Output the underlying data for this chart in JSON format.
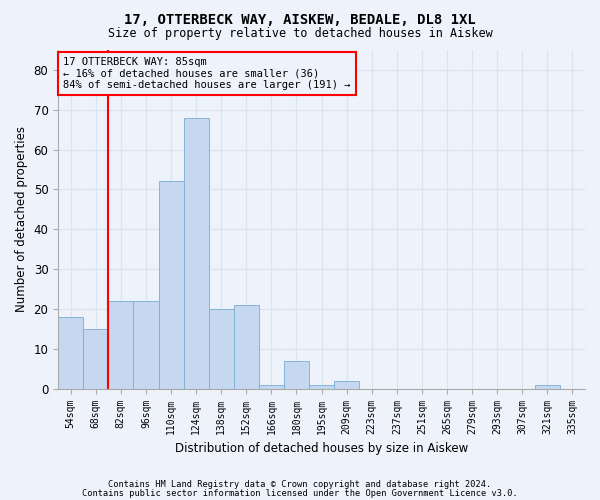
{
  "title": "17, OTTERBECK WAY, AISKEW, BEDALE, DL8 1XL",
  "subtitle": "Size of property relative to detached houses in Aiskew",
  "xlabel": "Distribution of detached houses by size in Aiskew",
  "ylabel": "Number of detached properties",
  "bar_color": "#c5d8f0",
  "bar_edge_color": "#7aadd4",
  "categories": [
    "54sqm",
    "68sqm",
    "82sqm",
    "96sqm",
    "110sqm",
    "124sqm",
    "138sqm",
    "152sqm",
    "166sqm",
    "180sqm",
    "195sqm",
    "209sqm",
    "223sqm",
    "237sqm",
    "251sqm",
    "265sqm",
    "279sqm",
    "293sqm",
    "307sqm",
    "321sqm",
    "335sqm"
  ],
  "values": [
    18,
    15,
    22,
    22,
    52,
    68,
    20,
    21,
    1,
    7,
    1,
    2,
    0,
    0,
    0,
    0,
    0,
    0,
    0,
    1,
    0
  ],
  "ylim": [
    0,
    85
  ],
  "yticks": [
    0,
    10,
    20,
    30,
    40,
    50,
    60,
    70,
    80
  ],
  "annotation_text": "17 OTTERBECK WAY: 85sqm\n← 16% of detached houses are smaller (36)\n84% of semi-detached houses are larger (191) →",
  "redline_x": 1.5,
  "background_color": "#eef2fa",
  "grid_color": "#d8e4f0",
  "footnote1": "Contains HM Land Registry data © Crown copyright and database right 2024.",
  "footnote2": "Contains public sector information licensed under the Open Government Licence v3.0."
}
